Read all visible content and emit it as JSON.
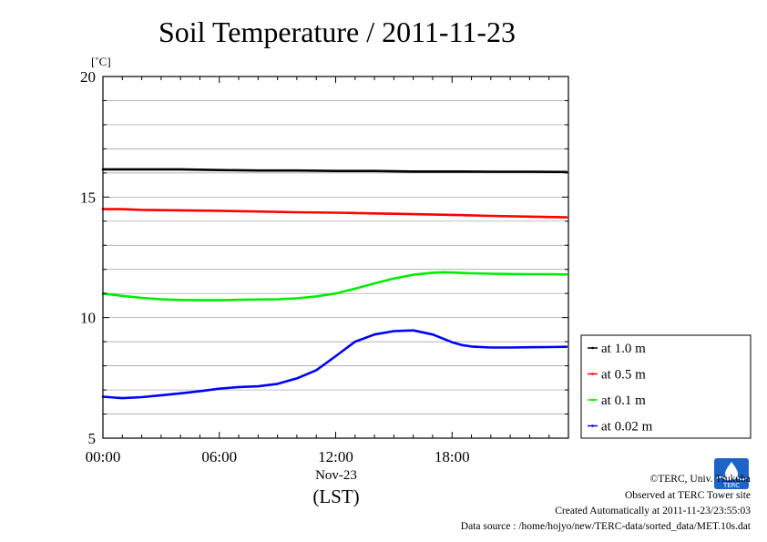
{
  "chart_data": {
    "type": "line",
    "title": "Soil Temperature / 2011-11-23",
    "ylabel": "[˚C]",
    "xlabel": "(LST)",
    "date_label": "Nov-23",
    "ylim": [
      5,
      20
    ],
    "yticks": [
      5,
      10,
      15,
      20
    ],
    "y_minor_step": 1,
    "xlim": [
      0,
      24
    ],
    "xticks": [
      0,
      6,
      12,
      18
    ],
    "xtick_labels": [
      "00:00",
      "06:00",
      "12:00",
      "18:00"
    ],
    "x_minor_step": 1,
    "grid": true,
    "legend_position": "right-bottom, outside plot",
    "series": [
      {
        "name": "at 1.0 m",
        "color": "#000000",
        "x": [
          0,
          2,
          4,
          6,
          8,
          10,
          12,
          14,
          16,
          18,
          20,
          22,
          23.9
        ],
        "y": [
          16.15,
          16.15,
          16.15,
          16.12,
          16.1,
          16.1,
          16.08,
          16.08,
          16.06,
          16.06,
          16.05,
          16.05,
          16.04
        ]
      },
      {
        "name": "at 0.5 m",
        "color": "#ff0000",
        "x": [
          0,
          1,
          2,
          4,
          6,
          8,
          10,
          12,
          14,
          16,
          18,
          20,
          22,
          23.9
        ],
        "y": [
          14.5,
          14.5,
          14.47,
          14.45,
          14.43,
          14.4,
          14.37,
          14.35,
          14.32,
          14.29,
          14.26,
          14.22,
          14.19,
          14.16
        ]
      },
      {
        "name": "at 0.1 m",
        "color": "#00ee00",
        "x": [
          0,
          1,
          2,
          3,
          4,
          5,
          6,
          7,
          8,
          9,
          10,
          11,
          12,
          13,
          14,
          15,
          16,
          17,
          17.5,
          18,
          19,
          20,
          21,
          22,
          23,
          23.9
        ],
        "y": [
          11.0,
          10.9,
          10.82,
          10.76,
          10.73,
          10.72,
          10.72,
          10.74,
          10.75,
          10.76,
          10.8,
          10.88,
          11.0,
          11.2,
          11.42,
          11.62,
          11.78,
          11.86,
          11.88,
          11.87,
          11.84,
          11.82,
          11.81,
          11.8,
          11.8,
          11.79
        ]
      },
      {
        "name": "at 0.02 m",
        "color": "#0000ff",
        "x": [
          0,
          1,
          2,
          3,
          4,
          5,
          6,
          7,
          8,
          9,
          10,
          11,
          12,
          13,
          13.5,
          14,
          15,
          16,
          17,
          18,
          18.5,
          19,
          20,
          21,
          22,
          23,
          23.9
        ],
        "y": [
          6.72,
          6.66,
          6.7,
          6.78,
          6.86,
          6.95,
          7.05,
          7.12,
          7.15,
          7.25,
          7.48,
          7.82,
          8.4,
          9.0,
          9.15,
          9.3,
          9.44,
          9.47,
          9.3,
          8.98,
          8.86,
          8.8,
          8.76,
          8.76,
          8.77,
          8.78,
          8.79
        ]
      }
    ]
  },
  "footer": {
    "copyright": "©TERC, Univ. Tsukuba",
    "site": "Observed at TERC Tower site",
    "created": "Created Automatically at 2011-11-23/23:55:03",
    "source": "Data source : /home/hojyo/new/TERC-data/sorted_data/MET.10s.dat",
    "logo_text": "TERC"
  }
}
